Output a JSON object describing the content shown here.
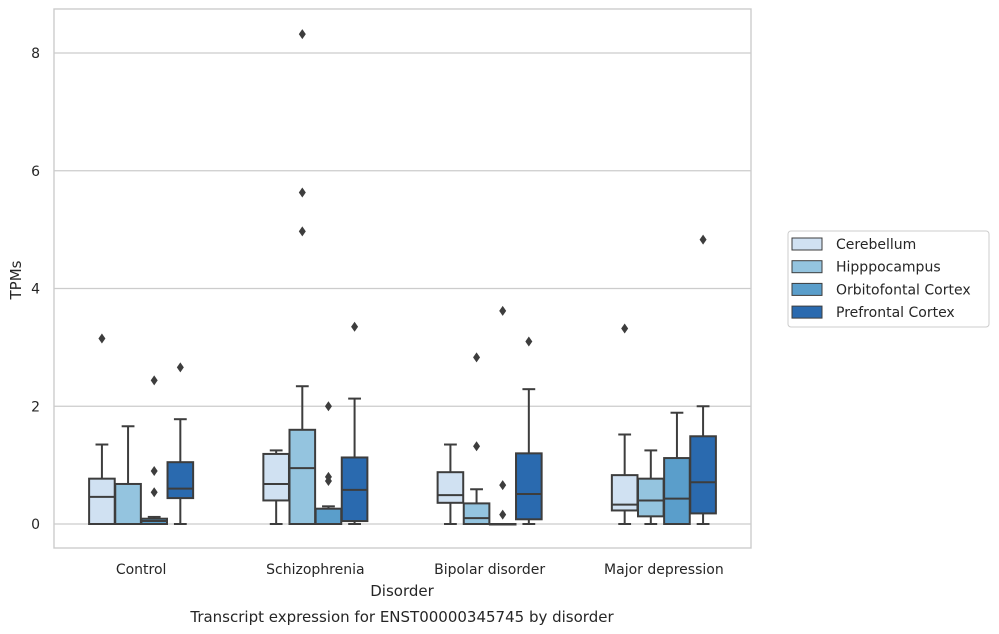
{
  "chart_data": {
    "type": "box",
    "xlabel": "Disorder",
    "ylabel": "TPMs",
    "caption": "Transcript expression for ENST00000345745 by disorder",
    "ylim": [
      -0.4,
      8.75
    ],
    "yticks": [
      0,
      2,
      4,
      6,
      8
    ],
    "grid": true,
    "legend_position": "right",
    "categories": [
      "Control",
      "Schizophrenia",
      "Bipolar disorder",
      "Major depression"
    ],
    "series": [
      {
        "name": "Cerebellum",
        "color": "#d0e1f2",
        "boxes": [
          {
            "min": 0.0,
            "q1": 0.0,
            "median": 0.46,
            "q3": 0.77,
            "max": 1.35,
            "outliers": [
              3.15
            ]
          },
          {
            "min": 0.0,
            "q1": 0.4,
            "median": 0.68,
            "q3": 1.19,
            "max": 1.25,
            "outliers": []
          },
          {
            "min": 0.0,
            "q1": 0.36,
            "median": 0.49,
            "q3": 0.88,
            "max": 1.35,
            "outliers": []
          },
          {
            "min": 0.0,
            "q1": 0.23,
            "median": 0.33,
            "q3": 0.83,
            "max": 1.52,
            "outliers": [
              3.32
            ]
          }
        ]
      },
      {
        "name": "Hipppocampus",
        "color": "#94c4df",
        "boxes": [
          {
            "min": 0.0,
            "q1": 0.0,
            "median": 0.0,
            "q3": 0.68,
            "max": 1.66,
            "outliers": []
          },
          {
            "min": 0.0,
            "q1": 0.0,
            "median": 0.95,
            "q3": 1.6,
            "max": 2.34,
            "outliers": [
              5.63,
              4.97,
              8.32
            ]
          },
          {
            "min": 0.0,
            "q1": 0.0,
            "median": 0.1,
            "q3": 0.35,
            "max": 0.59,
            "outliers": [
              1.32,
              2.83
            ]
          },
          {
            "min": 0.0,
            "q1": 0.13,
            "median": 0.4,
            "q3": 0.77,
            "max": 1.25,
            "outliers": []
          }
        ]
      },
      {
        "name": "Orbitofontal Cortex",
        "color": "#5a9ecb",
        "boxes": [
          {
            "min": 0.0,
            "q1": 0.0,
            "median": 0.05,
            "q3": 0.09,
            "max": 0.12,
            "outliers": [
              0.9,
              0.54,
              2.44
            ]
          },
          {
            "min": 0.0,
            "q1": 0.0,
            "median": 0.0,
            "q3": 0.26,
            "max": 0.3,
            "outliers": [
              0.73,
              0.8,
              2.0
            ]
          },
          {
            "min": 0.0,
            "q1": 0.0,
            "median": 0.0,
            "q3": 0.0,
            "max": 0.0,
            "outliers": [
              0.16,
              0.66,
              3.62
            ]
          },
          {
            "min": 0.0,
            "q1": 0.0,
            "median": 0.43,
            "q3": 1.12,
            "max": 1.89,
            "outliers": []
          }
        ]
      },
      {
        "name": "Prefrontal Cortex",
        "color": "#2a6aaf",
        "boxes": [
          {
            "min": 0.0,
            "q1": 0.44,
            "median": 0.6,
            "q3": 1.05,
            "max": 1.78,
            "outliers": [
              2.66
            ]
          },
          {
            "min": 0.0,
            "q1": 0.05,
            "median": 0.58,
            "q3": 1.13,
            "max": 2.13,
            "outliers": [
              3.35
            ]
          },
          {
            "min": 0.0,
            "q1": 0.08,
            "median": 0.51,
            "q3": 1.2,
            "max": 2.29,
            "outliers": [
              3.1
            ]
          },
          {
            "min": 0.0,
            "q1": 0.18,
            "median": 0.71,
            "q3": 1.49,
            "max": 2.0,
            "outliers": [
              4.83
            ]
          }
        ]
      }
    ]
  }
}
